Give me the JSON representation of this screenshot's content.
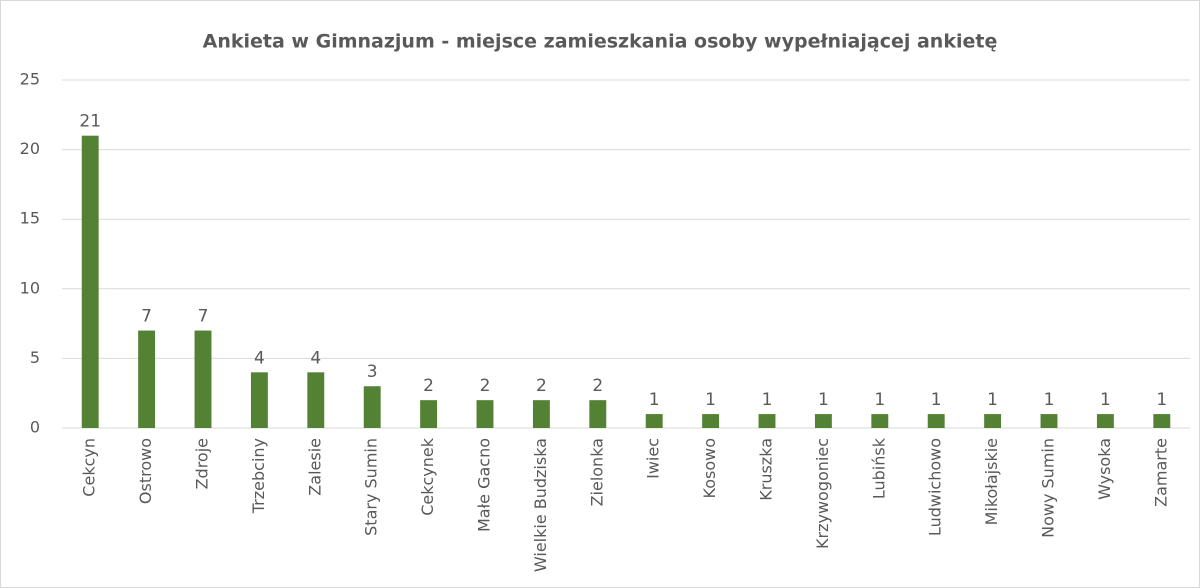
{
  "chart_data": {
    "type": "bar",
    "title": "Ankieta w Gimnazjum - miejsce zamieszkania osoby wypełniającej ankietę",
    "categories": [
      "Cekcyn",
      "Ostrowo",
      "Zdroje",
      "Trzebciny",
      "Zalesie",
      "Stary Sumin",
      "Cekcynek",
      "Małe Gacno",
      "Wielkie Budziska",
      "Zielonka",
      "Iwiec",
      "Kosowo",
      "Kruszka",
      "Krzywogoniec",
      "Lubińsk",
      "Ludwichowo",
      "Mikołajskie",
      "Nowy Sumin",
      "Wysoka",
      "Zamarte"
    ],
    "values": [
      21,
      7,
      7,
      4,
      4,
      3,
      2,
      2,
      2,
      2,
      1,
      1,
      1,
      1,
      1,
      1,
      1,
      1,
      1,
      1
    ],
    "color": "#548235",
    "ylim": [
      0,
      25
    ],
    "yticks": [
      0,
      5,
      10,
      15,
      20,
      25
    ],
    "grid": true
  }
}
